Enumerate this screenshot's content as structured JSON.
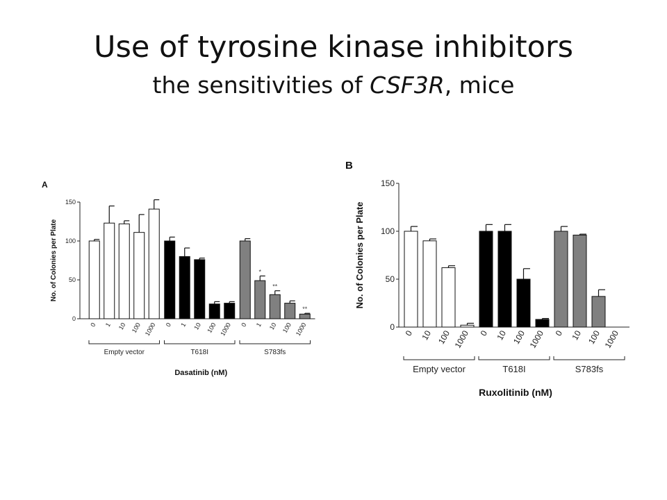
{
  "slide": {
    "title": "Use of tyrosine kinase inhibitors",
    "subtitle_prefix": "the sensitivities of ",
    "subtitle_gene": "CSF3R",
    "subtitle_suffix": ", mice"
  },
  "chart_data": [
    {
      "type": "bar",
      "panel_label": "A",
      "title": "",
      "xlabel": "Dasatinib (nM)",
      "ylabel": "No. of Colonies per Plate",
      "ylim": [
        0,
        150
      ],
      "yticks": [
        0,
        50,
        100,
        150
      ],
      "grid": false,
      "legend": "none",
      "groups": [
        {
          "name": "Empty vector",
          "color": "#ffffff",
          "categories": [
            "0",
            "1",
            "10",
            "100",
            "1000"
          ],
          "values": [
            100,
            123,
            122,
            111,
            141
          ],
          "errors": [
            2,
            22,
            4,
            23,
            12
          ],
          "annotations": [
            "",
            "",
            "",
            "",
            ""
          ]
        },
        {
          "name": "T618I",
          "color": "#000000",
          "categories": [
            "0",
            "1",
            "10",
            "100",
            "1000"
          ],
          "values": [
            100,
            80,
            76,
            19,
            20
          ],
          "errors": [
            5,
            11,
            2,
            3,
            2
          ],
          "annotations": [
            "",
            "",
            "",
            "",
            ""
          ]
        },
        {
          "name": "S783fs",
          "color": "#808080",
          "categories": [
            "0",
            "1",
            "10",
            "100",
            "1000"
          ],
          "values": [
            100,
            49,
            31,
            20,
            6
          ],
          "errors": [
            3,
            6,
            5,
            3,
            1
          ],
          "annotations": [
            "",
            "*",
            "**",
            "",
            "**"
          ]
        }
      ]
    },
    {
      "type": "bar",
      "panel_label": "B",
      "title": "",
      "xlabel": "Ruxolitinib (nM)",
      "ylabel": "No. of Colonies per Plate",
      "ylim": [
        0,
        150
      ],
      "yticks": [
        0,
        50,
        100,
        150
      ],
      "grid": false,
      "legend": "none",
      "groups": [
        {
          "name": "Empty vector",
          "color": "#ffffff",
          "categories": [
            "0",
            "10",
            "100",
            "1000"
          ],
          "values": [
            100,
            90,
            62,
            2
          ],
          "errors": [
            5,
            2,
            2,
            2
          ],
          "annotations": [
            "",
            "",
            "",
            ""
          ]
        },
        {
          "name": "T618I",
          "color": "#000000",
          "categories": [
            "0",
            "10",
            "100",
            "1000"
          ],
          "values": [
            100,
            100,
            50,
            8
          ],
          "errors": [
            7,
            7,
            11,
            1
          ],
          "annotations": [
            "",
            "",
            "",
            ""
          ]
        },
        {
          "name": "S783fs",
          "color": "#808080",
          "categories": [
            "0",
            "10",
            "100",
            "1000"
          ],
          "values": [
            100,
            96,
            32,
            0
          ],
          "errors": [
            5,
            1,
            7,
            0
          ],
          "annotations": [
            "",
            "",
            "",
            ""
          ]
        }
      ]
    }
  ]
}
